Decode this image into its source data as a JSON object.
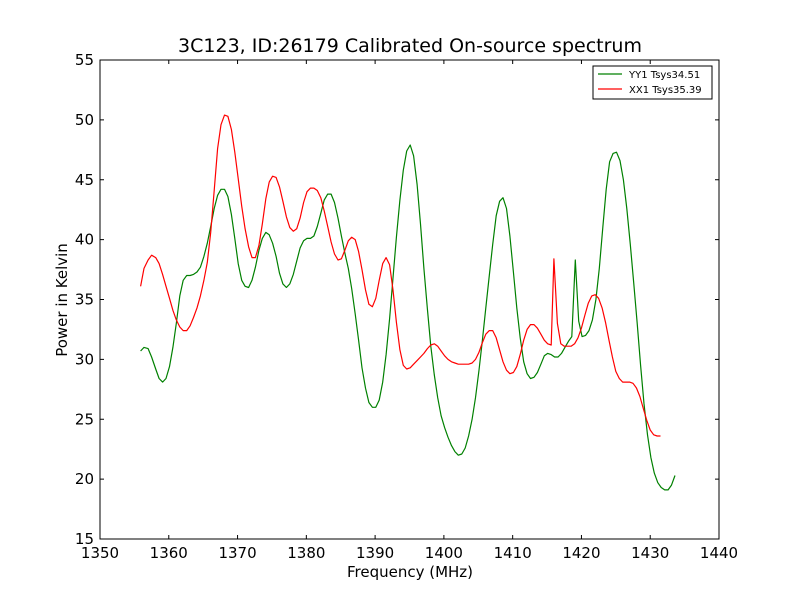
{
  "chart_data": {
    "type": "line",
    "title": "3C123, ID:26179 Calibrated On-source spectrum",
    "xlabel": "Frequency (MHz)",
    "ylabel": "Power in Kelvin",
    "xlim": [
      1350,
      1440
    ],
    "ylim": [
      15,
      55
    ],
    "xticks": [
      1350,
      1360,
      1370,
      1380,
      1390,
      1400,
      1410,
      1420,
      1430,
      1440
    ],
    "yticks": [
      15,
      20,
      25,
      30,
      35,
      40,
      45,
      50,
      55
    ],
    "grid": false,
    "legend_position": "top-right",
    "series": [
      {
        "name": "YY1 Tsys34.51",
        "color": "#008000",
        "points": [
          [
            1355.9,
            30.7
          ],
          [
            1356.4,
            31.0
          ],
          [
            1357.0,
            30.9
          ],
          [
            1357.5,
            30.2
          ],
          [
            1358.1,
            29.2
          ],
          [
            1358.6,
            28.4
          ],
          [
            1359.1,
            28.1
          ],
          [
            1359.6,
            28.4
          ],
          [
            1360.1,
            29.4
          ],
          [
            1360.6,
            31.0
          ],
          [
            1361.1,
            33.0
          ],
          [
            1361.6,
            35.3
          ],
          [
            1362.1,
            36.6
          ],
          [
            1362.6,
            37.0
          ],
          [
            1363.1,
            37.0
          ],
          [
            1363.6,
            37.1
          ],
          [
            1364.1,
            37.3
          ],
          [
            1364.6,
            37.7
          ],
          [
            1365.1,
            38.6
          ],
          [
            1365.6,
            39.7
          ],
          [
            1366.1,
            41.1
          ],
          [
            1366.6,
            42.6
          ],
          [
            1367.1,
            43.7
          ],
          [
            1367.6,
            44.2
          ],
          [
            1368.1,
            44.2
          ],
          [
            1368.6,
            43.6
          ],
          [
            1369.1,
            42.1
          ],
          [
            1369.6,
            40.1
          ],
          [
            1370.1,
            38.0
          ],
          [
            1370.6,
            36.6
          ],
          [
            1371.1,
            36.1
          ],
          [
            1371.6,
            36.0
          ],
          [
            1372.1,
            36.6
          ],
          [
            1372.6,
            37.7
          ],
          [
            1373.1,
            39.1
          ],
          [
            1373.6,
            40.1
          ],
          [
            1374.1,
            40.6
          ],
          [
            1374.6,
            40.4
          ],
          [
            1375.1,
            39.7
          ],
          [
            1375.6,
            38.6
          ],
          [
            1376.1,
            37.2
          ],
          [
            1376.6,
            36.3
          ],
          [
            1377.1,
            36.0
          ],
          [
            1377.6,
            36.3
          ],
          [
            1378.1,
            37.1
          ],
          [
            1378.6,
            38.2
          ],
          [
            1379.1,
            39.3
          ],
          [
            1379.6,
            39.9
          ],
          [
            1380.1,
            40.1
          ],
          [
            1380.6,
            40.1
          ],
          [
            1381.1,
            40.3
          ],
          [
            1381.6,
            41.1
          ],
          [
            1382.1,
            42.2
          ],
          [
            1382.6,
            43.3
          ],
          [
            1383.1,
            43.8
          ],
          [
            1383.6,
            43.8
          ],
          [
            1384.1,
            43.1
          ],
          [
            1384.6,
            41.8
          ],
          [
            1385.1,
            40.3
          ],
          [
            1385.6,
            38.9
          ],
          [
            1386.1,
            37.6
          ],
          [
            1386.6,
            35.9
          ],
          [
            1387.1,
            33.8
          ],
          [
            1387.6,
            31.6
          ],
          [
            1388.1,
            29.3
          ],
          [
            1388.6,
            27.6
          ],
          [
            1389.1,
            26.4
          ],
          [
            1389.6,
            26.0
          ],
          [
            1390.1,
            26.0
          ],
          [
            1390.6,
            26.6
          ],
          [
            1391.1,
            28.1
          ],
          [
            1391.6,
            30.4
          ],
          [
            1392.1,
            33.4
          ],
          [
            1392.6,
            36.8
          ],
          [
            1393.1,
            40.2
          ],
          [
            1393.6,
            43.3
          ],
          [
            1394.1,
            45.8
          ],
          [
            1394.6,
            47.4
          ],
          [
            1395.1,
            47.9
          ],
          [
            1395.6,
            47.0
          ],
          [
            1396.1,
            44.6
          ],
          [
            1396.6,
            41.3
          ],
          [
            1397.1,
            37.6
          ],
          [
            1397.6,
            34.2
          ],
          [
            1398.1,
            31.1
          ],
          [
            1398.6,
            28.7
          ],
          [
            1399.1,
            26.8
          ],
          [
            1399.6,
            25.3
          ],
          [
            1400.1,
            24.3
          ],
          [
            1400.6,
            23.5
          ],
          [
            1401.1,
            22.8
          ],
          [
            1401.6,
            22.3
          ],
          [
            1402.1,
            22.0
          ],
          [
            1402.6,
            22.1
          ],
          [
            1403.1,
            22.6
          ],
          [
            1403.6,
            23.6
          ],
          [
            1404.1,
            25.0
          ],
          [
            1404.6,
            26.8
          ],
          [
            1405.1,
            29.1
          ],
          [
            1405.6,
            31.6
          ],
          [
            1406.1,
            34.3
          ],
          [
            1406.6,
            37.0
          ],
          [
            1407.1,
            39.6
          ],
          [
            1407.6,
            42.0
          ],
          [
            1408.1,
            43.2
          ],
          [
            1408.6,
            43.5
          ],
          [
            1409.1,
            42.6
          ],
          [
            1409.6,
            40.3
          ],
          [
            1410.1,
            37.3
          ],
          [
            1410.6,
            34.3
          ],
          [
            1411.1,
            31.8
          ],
          [
            1411.6,
            29.8
          ],
          [
            1412.1,
            28.8
          ],
          [
            1412.6,
            28.4
          ],
          [
            1413.1,
            28.5
          ],
          [
            1413.6,
            28.9
          ],
          [
            1414.1,
            29.6
          ],
          [
            1414.6,
            30.3
          ],
          [
            1415.1,
            30.5
          ],
          [
            1415.6,
            30.4
          ],
          [
            1416.1,
            30.2
          ],
          [
            1416.6,
            30.2
          ],
          [
            1417.1,
            30.5
          ],
          [
            1417.6,
            31.0
          ],
          [
            1418.1,
            31.5
          ],
          [
            1418.6,
            31.9
          ],
          [
            1419.1,
            38.3
          ],
          [
            1419.6,
            33.2
          ],
          [
            1420.1,
            31.9
          ],
          [
            1420.6,
            32.0
          ],
          [
            1421.1,
            32.4
          ],
          [
            1421.6,
            33.3
          ],
          [
            1422.1,
            35.0
          ],
          [
            1422.6,
            37.6
          ],
          [
            1423.1,
            41.0
          ],
          [
            1423.6,
            44.2
          ],
          [
            1424.1,
            46.5
          ],
          [
            1424.6,
            47.2
          ],
          [
            1425.1,
            47.3
          ],
          [
            1425.6,
            46.6
          ],
          [
            1426.1,
            45.0
          ],
          [
            1426.6,
            42.6
          ],
          [
            1427.1,
            39.6
          ],
          [
            1427.6,
            36.4
          ],
          [
            1428.1,
            33.0
          ],
          [
            1428.6,
            29.5
          ],
          [
            1429.1,
            26.3
          ],
          [
            1429.6,
            23.7
          ],
          [
            1430.1,
            21.8
          ],
          [
            1430.6,
            20.5
          ],
          [
            1431.1,
            19.7
          ],
          [
            1431.6,
            19.3
          ],
          [
            1432.1,
            19.1
          ],
          [
            1432.6,
            19.1
          ],
          [
            1433.1,
            19.5
          ],
          [
            1433.6,
            20.3
          ]
        ]
      },
      {
        "name": "XX1 Tsys35.39",
        "color": "#ff0000",
        "points": [
          [
            1355.9,
            36.1
          ],
          [
            1356.4,
            37.6
          ],
          [
            1357.0,
            38.3
          ],
          [
            1357.5,
            38.7
          ],
          [
            1358.1,
            38.5
          ],
          [
            1358.6,
            38.0
          ],
          [
            1359.1,
            37.1
          ],
          [
            1359.6,
            36.1
          ],
          [
            1360.1,
            35.1
          ],
          [
            1360.6,
            34.1
          ],
          [
            1361.1,
            33.3
          ],
          [
            1361.6,
            32.7
          ],
          [
            1362.1,
            32.4
          ],
          [
            1362.6,
            32.4
          ],
          [
            1363.1,
            32.8
          ],
          [
            1363.6,
            33.5
          ],
          [
            1364.1,
            34.3
          ],
          [
            1364.6,
            35.3
          ],
          [
            1365.1,
            36.6
          ],
          [
            1365.6,
            38.1
          ],
          [
            1366.1,
            40.6
          ],
          [
            1366.6,
            44.1
          ],
          [
            1367.1,
            47.6
          ],
          [
            1367.6,
            49.6
          ],
          [
            1368.1,
            50.4
          ],
          [
            1368.6,
            50.3
          ],
          [
            1369.1,
            49.2
          ],
          [
            1369.6,
            47.3
          ],
          [
            1370.1,
            45.1
          ],
          [
            1370.6,
            42.8
          ],
          [
            1371.1,
            40.9
          ],
          [
            1371.6,
            39.4
          ],
          [
            1372.1,
            38.5
          ],
          [
            1372.6,
            38.5
          ],
          [
            1373.1,
            39.5
          ],
          [
            1373.6,
            41.3
          ],
          [
            1374.1,
            43.4
          ],
          [
            1374.6,
            44.8
          ],
          [
            1375.1,
            45.3
          ],
          [
            1375.6,
            45.2
          ],
          [
            1376.1,
            44.4
          ],
          [
            1376.6,
            43.2
          ],
          [
            1377.1,
            41.9
          ],
          [
            1377.6,
            41.0
          ],
          [
            1378.1,
            40.7
          ],
          [
            1378.6,
            40.9
          ],
          [
            1379.1,
            41.8
          ],
          [
            1379.6,
            43.1
          ],
          [
            1380.1,
            44.0
          ],
          [
            1380.6,
            44.3
          ],
          [
            1381.1,
            44.3
          ],
          [
            1381.6,
            44.1
          ],
          [
            1382.1,
            43.5
          ],
          [
            1382.6,
            42.4
          ],
          [
            1383.1,
            41.1
          ],
          [
            1383.6,
            39.8
          ],
          [
            1384.1,
            38.8
          ],
          [
            1384.6,
            38.3
          ],
          [
            1385.1,
            38.4
          ],
          [
            1385.6,
            39.1
          ],
          [
            1386.1,
            39.9
          ],
          [
            1386.6,
            40.2
          ],
          [
            1387.1,
            40.0
          ],
          [
            1387.6,
            39.0
          ],
          [
            1388.1,
            37.5
          ],
          [
            1388.6,
            35.8
          ],
          [
            1389.1,
            34.6
          ],
          [
            1389.6,
            34.4
          ],
          [
            1390.1,
            35.1
          ],
          [
            1390.6,
            36.6
          ],
          [
            1391.1,
            38.0
          ],
          [
            1391.6,
            38.5
          ],
          [
            1392.1,
            37.9
          ],
          [
            1392.6,
            35.8
          ],
          [
            1393.1,
            33.1
          ],
          [
            1393.6,
            30.8
          ],
          [
            1394.1,
            29.5
          ],
          [
            1394.6,
            29.2
          ],
          [
            1395.1,
            29.3
          ],
          [
            1395.6,
            29.6
          ],
          [
            1396.1,
            29.9
          ],
          [
            1396.6,
            30.2
          ],
          [
            1397.1,
            30.5
          ],
          [
            1397.6,
            30.9
          ],
          [
            1398.1,
            31.2
          ],
          [
            1398.6,
            31.3
          ],
          [
            1399.1,
            31.1
          ],
          [
            1399.6,
            30.7
          ],
          [
            1400.1,
            30.3
          ],
          [
            1400.6,
            30.0
          ],
          [
            1401.1,
            29.8
          ],
          [
            1401.6,
            29.7
          ],
          [
            1402.1,
            29.6
          ],
          [
            1402.6,
            29.6
          ],
          [
            1403.1,
            29.6
          ],
          [
            1403.6,
            29.6
          ],
          [
            1404.1,
            29.7
          ],
          [
            1404.6,
            30.0
          ],
          [
            1405.1,
            30.6
          ],
          [
            1405.6,
            31.4
          ],
          [
            1406.1,
            32.1
          ],
          [
            1406.6,
            32.4
          ],
          [
            1407.1,
            32.4
          ],
          [
            1407.6,
            31.8
          ],
          [
            1408.1,
            30.8
          ],
          [
            1408.6,
            29.8
          ],
          [
            1409.1,
            29.1
          ],
          [
            1409.6,
            28.8
          ],
          [
            1410.1,
            28.9
          ],
          [
            1410.6,
            29.4
          ],
          [
            1411.1,
            30.4
          ],
          [
            1411.6,
            31.6
          ],
          [
            1412.1,
            32.5
          ],
          [
            1412.6,
            32.9
          ],
          [
            1413.1,
            32.9
          ],
          [
            1413.6,
            32.6
          ],
          [
            1414.1,
            32.1
          ],
          [
            1414.6,
            31.6
          ],
          [
            1415.1,
            31.3
          ],
          [
            1415.6,
            31.2
          ],
          [
            1416.0,
            38.4
          ],
          [
            1416.5,
            33.0
          ],
          [
            1417.0,
            31.3
          ],
          [
            1417.5,
            31.1
          ],
          [
            1418.0,
            31.1
          ],
          [
            1418.5,
            31.1
          ],
          [
            1419.0,
            31.3
          ],
          [
            1419.5,
            31.8
          ],
          [
            1420.0,
            32.6
          ],
          [
            1420.5,
            33.7
          ],
          [
            1421.0,
            34.7
          ],
          [
            1421.5,
            35.3
          ],
          [
            1422.0,
            35.4
          ],
          [
            1422.5,
            35.1
          ],
          [
            1423.0,
            34.3
          ],
          [
            1423.5,
            33.1
          ],
          [
            1424.0,
            31.6
          ],
          [
            1424.5,
            30.2
          ],
          [
            1425.0,
            29.0
          ],
          [
            1425.5,
            28.4
          ],
          [
            1426.0,
            28.1
          ],
          [
            1426.5,
            28.1
          ],
          [
            1427.0,
            28.1
          ],
          [
            1427.5,
            28.0
          ],
          [
            1428.0,
            27.6
          ],
          [
            1428.5,
            26.9
          ],
          [
            1429.0,
            25.9
          ],
          [
            1429.5,
            24.9
          ],
          [
            1430.0,
            24.1
          ],
          [
            1430.5,
            23.7
          ],
          [
            1431.0,
            23.6
          ],
          [
            1431.5,
            23.6
          ]
        ]
      }
    ]
  }
}
